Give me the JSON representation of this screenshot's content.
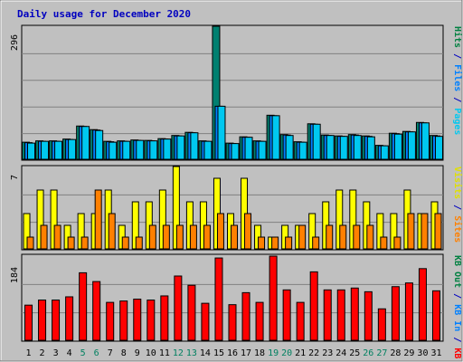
{
  "chart_data": {
    "type": "bar",
    "title": "Daily usage for December 2020",
    "categories": [
      "1",
      "2",
      "3",
      "4",
      "5",
      "6",
      "7",
      "8",
      "9",
      "10",
      "11",
      "12",
      "13",
      "14",
      "15",
      "16",
      "17",
      "18",
      "19",
      "20",
      "21",
      "22",
      "23",
      "24",
      "25",
      "26",
      "27",
      "28",
      "29",
      "30",
      "31"
    ],
    "weekend_days": [
      "5",
      "6",
      "12",
      "13",
      "19",
      "20",
      "26",
      "27"
    ],
    "panels": [
      {
        "id": "hits",
        "max_label": "296",
        "ylim": [
          0,
          296
        ],
        "axis_labels": [
          {
            "text": "Pages",
            "color": "#00c8f0"
          },
          {
            "text": " / ",
            "color": "#0000c0"
          },
          {
            "text": "Files",
            "color": "#0080ff"
          },
          {
            "text": " / ",
            "color": "#0000c0"
          },
          {
            "text": "Hits",
            "color": "#008040"
          }
        ],
        "series": [
          {
            "name": "Hits",
            "color": "#008070",
            "values": [
              38,
              41,
              41,
              45,
              74,
              66,
              40,
              41,
              43,
              42,
              46,
              53,
              60,
              41,
              296,
              36,
              50,
              41,
              98,
              55,
              39,
              79,
              54,
              52,
              55,
              52,
              31,
              58,
              62,
              82,
              53
            ]
          },
          {
            "name": "Files",
            "color": "#0080ff",
            "values": [
              37,
              40,
              40,
              44,
              73,
              65,
              39,
              40,
              42,
              41,
              45,
              52,
              59,
              40,
              118,
              35,
              49,
              40,
              97,
              54,
              38,
              78,
              53,
              51,
              54,
              51,
              30,
              57,
              61,
              81,
              52
            ]
          },
          {
            "name": "Pages",
            "color": "#00c8f0",
            "values": [
              36,
              40,
              40,
              44,
              73,
              64,
              38,
              40,
              42,
              41,
              45,
              52,
              59,
              40,
              118,
              35,
              49,
              40,
              97,
              53,
              38,
              78,
              53,
              51,
              53,
              50,
              30,
              56,
              61,
              81,
              51
            ]
          }
        ]
      },
      {
        "id": "visits",
        "max_label": "7",
        "ylim": [
          0,
          7
        ],
        "axis_labels": [
          {
            "text": "Sites",
            "color": "#ff8000"
          },
          {
            "text": " / ",
            "color": "#0000c0"
          },
          {
            "text": "Visits",
            "color": "#e0e000"
          }
        ],
        "series": [
          {
            "name": "Visits",
            "color": "#ffff00",
            "values": [
              3,
              5,
              5,
              2,
              3,
              3,
              5,
              2,
              4,
              4,
              5,
              7,
              4,
              4,
              6,
              3,
              6,
              2,
              1,
              2,
              2,
              3,
              4,
              5,
              5,
              4,
              3,
              3,
              5,
              3,
              4
            ]
          },
          {
            "name": "Sites",
            "color": "#ff8000",
            "values": [
              1,
              2,
              2,
              1,
              1,
              5,
              3,
              1,
              1,
              2,
              2,
              2,
              2,
              2,
              3,
              2,
              3,
              1,
              1,
              1,
              2,
              1,
              2,
              2,
              2,
              2,
              1,
              1,
              3,
              3,
              3
            ]
          }
        ]
      },
      {
        "id": "kbytes",
        "max_label": "184",
        "ylim": [
          0,
          184
        ],
        "axis_labels": [
          {
            "text": "KB F",
            "color": "#ff0000"
          },
          {
            "text": " / ",
            "color": "#0000c0"
          },
          {
            "text": "KB In",
            "color": "#0080ff"
          },
          {
            "text": " / ",
            "color": "#0000c0"
          },
          {
            "text": "KB Out",
            "color": "#008040"
          }
        ],
        "series": [
          {
            "name": "KB F",
            "color": "#ff0000",
            "values": [
              76,
              87,
              87,
              94,
              146,
              127,
              82,
              85,
              89,
              87,
              96,
              139,
              119,
              80,
              178,
              77,
              103,
              82,
              182,
              109,
              82,
              148,
              109,
              109,
              113,
              105,
              68,
              116,
              124,
              155,
              107
            ]
          }
        ]
      }
    ]
  }
}
